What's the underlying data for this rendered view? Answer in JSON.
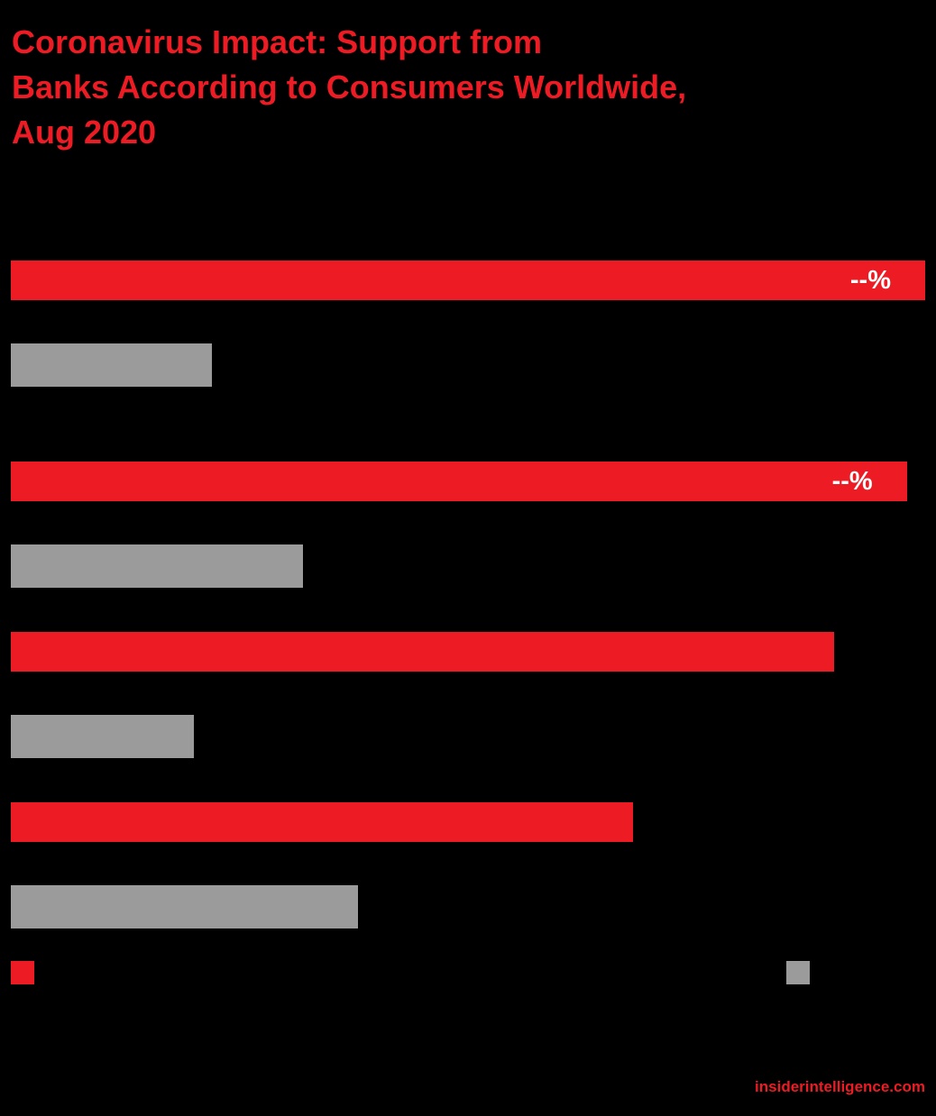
{
  "title": {
    "lines": [
      "Coronavirus Impact: Support from",
      "Banks According to Consumers Worldwide,",
      "Aug 2020"
    ]
  },
  "footer": {
    "text": "insiderintelligence.com"
  },
  "colors": {
    "accent_red": "#ed1c24",
    "bar_gray": "#9b9b9b",
    "value_label_text": "#ffffff",
    "background": "#000000"
  },
  "chart_data": {
    "type": "bar",
    "orientation": "horizontal",
    "title": "Coronavirus Impact: Support from Banks According to Consumers Worldwide, Aug 2020",
    "units": "%",
    "xlim": [
      0,
      100
    ],
    "grid": false,
    "categories": [
      "",
      "",
      "",
      ""
    ],
    "series": [
      {
        "name": "series-red",
        "color": "#ed1c24",
        "values": [
          100,
          98,
          90,
          68
        ],
        "value_labels": [
          "--%",
          "--%",
          "",
          ""
        ]
      },
      {
        "name": "series-gray",
        "color": "#9b9b9b",
        "values": [
          22,
          32,
          20,
          38
        ],
        "value_labels": [
          "",
          "",
          "",
          ""
        ]
      }
    ],
    "legend": {
      "position": "bottom",
      "entries": [
        {
          "name": "series-red",
          "color": "#ed1c24",
          "label": ""
        },
        {
          "name": "series-gray",
          "color": "#9b9b9b",
          "label": ""
        }
      ]
    }
  }
}
